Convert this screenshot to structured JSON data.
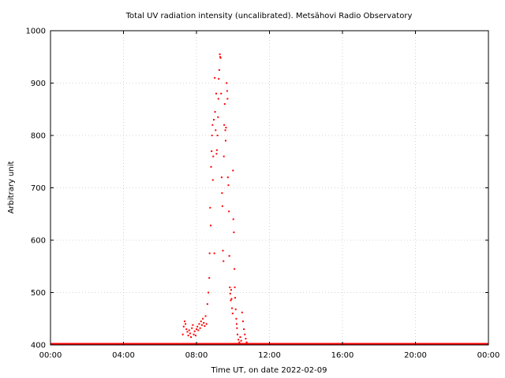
{
  "chart_data": {
    "type": "scatter",
    "title": "Total UV radiation intensity (uncalibrated). Metsähovi Radio Observatory",
    "xlabel": "Time UT, on date 2022-02-09",
    "ylabel": "Arbitrary unit",
    "xlim": [
      0,
      24
    ],
    "ylim": [
      400,
      1000
    ],
    "x_ticks": [
      0,
      4,
      8,
      12,
      16,
      20,
      24
    ],
    "x_tick_labels": [
      "00:00",
      "04:00",
      "08:00",
      "12:00",
      "16:00",
      "20:00",
      "00:00"
    ],
    "y_ticks": [
      400,
      500,
      600,
      700,
      800,
      900,
      1000
    ],
    "y_tick_labels": [
      "400",
      "500",
      "600",
      "700",
      "800",
      "900",
      "1000"
    ],
    "grid": true,
    "series": [
      {
        "color": "#ff0000",
        "baseline": {
          "x_start": 0,
          "x_end": 24,
          "y": 400
        },
        "points": [
          [
            7.25,
            420
          ],
          [
            7.3,
            435
          ],
          [
            7.35,
            445
          ],
          [
            7.4,
            440
          ],
          [
            7.45,
            430
          ],
          [
            7.5,
            425
          ],
          [
            7.55,
            418
          ],
          [
            7.6,
            428
          ],
          [
            7.65,
            422
          ],
          [
            7.7,
            415
          ],
          [
            7.75,
            432
          ],
          [
            7.8,
            438
          ],
          [
            7.85,
            420
          ],
          [
            7.9,
            426
          ],
          [
            7.95,
            418
          ],
          [
            8.0,
            430
          ],
          [
            8.05,
            435
          ],
          [
            8.1,
            428
          ],
          [
            8.15,
            440
          ],
          [
            8.2,
            432
          ],
          [
            8.25,
            445
          ],
          [
            8.3,
            438
          ],
          [
            8.35,
            450
          ],
          [
            8.4,
            442
          ],
          [
            8.45,
            436
          ],
          [
            8.5,
            455
          ],
          [
            8.55,
            440
          ],
          [
            8.6,
            478
          ],
          [
            8.65,
            500
          ],
          [
            8.7,
            528
          ],
          [
            8.72,
            575
          ],
          [
            8.75,
            662
          ],
          [
            8.78,
            628
          ],
          [
            8.8,
            740
          ],
          [
            8.83,
            770
          ],
          [
            8.85,
            800
          ],
          [
            8.88,
            820
          ],
          [
            8.9,
            715
          ],
          [
            8.92,
            760
          ],
          [
            8.95,
            830
          ],
          [
            8.98,
            575
          ],
          [
            9.0,
            910
          ],
          [
            9.02,
            845
          ],
          [
            9.05,
            810
          ],
          [
            9.08,
            880
          ],
          [
            9.1,
            765
          ],
          [
            9.12,
            772
          ],
          [
            9.15,
            800
          ],
          [
            9.18,
            835
          ],
          [
            9.2,
            870
          ],
          [
            9.22,
            908
          ],
          [
            9.25,
            925
          ],
          [
            9.28,
            955
          ],
          [
            9.3,
            950
          ],
          [
            9.32,
            948
          ],
          [
            9.35,
            880
          ],
          [
            9.38,
            720
          ],
          [
            9.4,
            690
          ],
          [
            9.42,
            665
          ],
          [
            9.45,
            580
          ],
          [
            9.48,
            560
          ],
          [
            9.5,
            760
          ],
          [
            9.52,
            820
          ],
          [
            9.55,
            860
          ],
          [
            9.58,
            810
          ],
          [
            9.6,
            790
          ],
          [
            9.62,
            815
          ],
          [
            9.65,
            900
          ],
          [
            9.68,
            885
          ],
          [
            9.7,
            870
          ],
          [
            9.72,
            720
          ],
          [
            9.75,
            705
          ],
          [
            9.78,
            655
          ],
          [
            9.8,
            570
          ],
          [
            9.83,
            510
          ],
          [
            9.85,
            498
          ],
          [
            9.88,
            485
          ],
          [
            9.9,
            505
          ],
          [
            9.92,
            488
          ],
          [
            9.95,
            470
          ],
          [
            9.98,
            460
          ],
          [
            10.0,
            733
          ],
          [
            10.02,
            640
          ],
          [
            10.05,
            615
          ],
          [
            10.08,
            545
          ],
          [
            10.1,
            510
          ],
          [
            10.12,
            490
          ],
          [
            10.15,
            468
          ],
          [
            10.18,
            450
          ],
          [
            10.2,
            440
          ],
          [
            10.22,
            432
          ],
          [
            10.25,
            420
          ],
          [
            10.3,
            410
          ],
          [
            10.35,
            405
          ],
          [
            10.4,
            415
          ],
          [
            10.45,
            408
          ],
          [
            10.5,
            462
          ],
          [
            10.55,
            445
          ],
          [
            10.6,
            430
          ],
          [
            10.65,
            420
          ],
          [
            10.7,
            412
          ],
          [
            10.75,
            405
          ]
        ]
      }
    ]
  }
}
